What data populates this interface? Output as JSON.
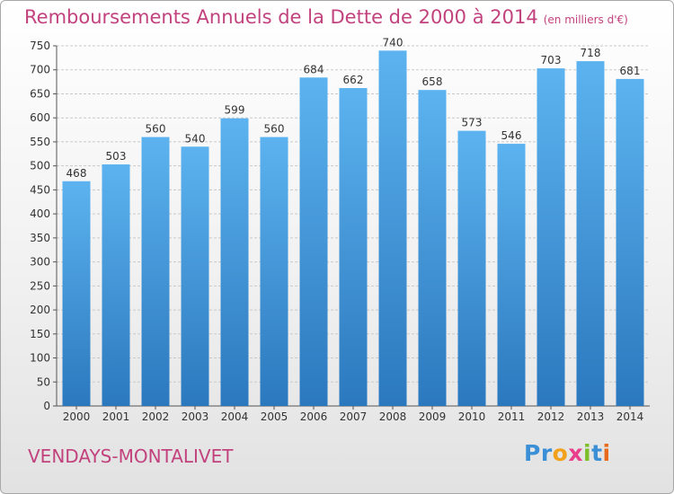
{
  "title": "Remboursements Annuels de la Dette de 2000 à 2014",
  "unit_note": "(en milliers d'€)",
  "place": "VENDAYS-MONTALIVET",
  "logo": {
    "letters": [
      "P",
      "r",
      "o",
      "x",
      "i",
      "t",
      "i"
    ],
    "colors": [
      "#3b8fd6",
      "#3b8fd6",
      "#f2a11d",
      "#e83e8c",
      "#7cbf2a",
      "#3b8fd6",
      "#e86b1d"
    ]
  },
  "colors": {
    "title": "#c2427e",
    "bar_light": "#5cb3ef",
    "bar_dark": "#2b78be",
    "grid": "#c9c9c9"
  },
  "chart_data": {
    "type": "bar",
    "title": "Remboursements Annuels de la Dette de 2000 à 2014",
    "subtitle": "(en milliers d'€)",
    "categories": [
      "2000",
      "2001",
      "2002",
      "2003",
      "2004",
      "2005",
      "2006",
      "2007",
      "2008",
      "2009",
      "2010",
      "2011",
      "2012",
      "2013",
      "2014"
    ],
    "values": [
      468,
      503,
      560,
      540,
      599,
      560,
      684,
      662,
      740,
      658,
      573,
      546,
      703,
      718,
      681
    ],
    "ylim": [
      0,
      750
    ],
    "yticks": [
      0,
      50,
      100,
      150,
      200,
      250,
      300,
      350,
      400,
      450,
      500,
      550,
      600,
      650,
      700,
      750
    ],
    "grid": true,
    "data_labels": true
  }
}
